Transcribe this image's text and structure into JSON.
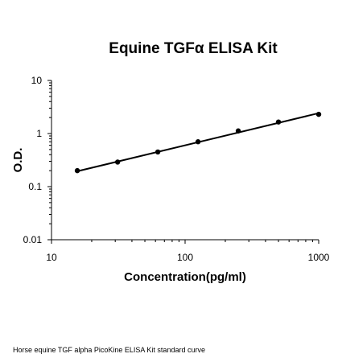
{
  "chart_data": {
    "type": "scatter",
    "title": "Equine TGFα ELISA Kit",
    "xlabel": "Concentration(pg/ml)",
    "ylabel": "O.D.",
    "xscale": "log",
    "yscale": "log",
    "xlim": [
      10,
      1000
    ],
    "ylim": [
      0.01,
      10
    ],
    "xticks": [
      "10",
      "100",
      "1000"
    ],
    "yticks": [
      "0.01",
      "0.1",
      "1",
      "10"
    ],
    "grid": false,
    "legend": "none",
    "series": [
      {
        "x": [
          15.6,
          31.25,
          62.5,
          125,
          250,
          500,
          1000
        ],
        "y": [
          0.2,
          0.29,
          0.45,
          0.7,
          1.12,
          1.65,
          2.3
        ]
      }
    ],
    "fit_line": {
      "x": [
        15.6,
        1000
      ],
      "y": [
        0.195,
        2.42
      ]
    },
    "colors": {
      "marker": "#000000",
      "line": "#000000"
    }
  },
  "caption": "Horse equine TGF alpha PicoKine ELISA Kit standard curve"
}
